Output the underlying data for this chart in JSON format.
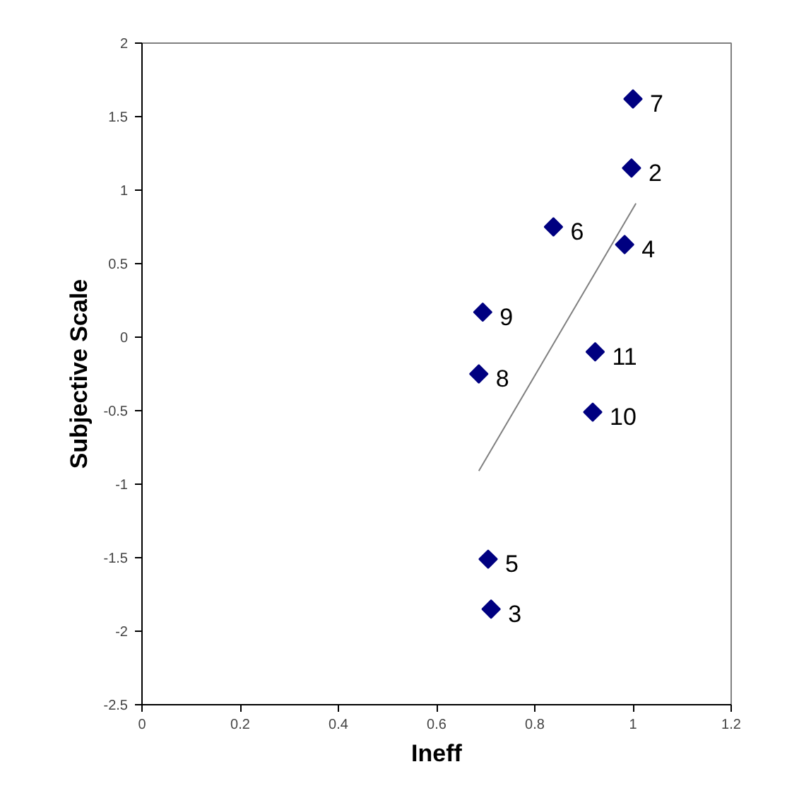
{
  "chart_data": {
    "type": "scatter",
    "xlabel": "Ineff",
    "ylabel": "Subjective Scale",
    "marker": "diamond",
    "grid": false,
    "xlim": [
      0,
      1.2
    ],
    "ylim": [
      -2.5,
      2
    ],
    "xticks": [
      0,
      0.2,
      0.4,
      0.6,
      0.8,
      1,
      1.2
    ],
    "yticks": [
      -2.5,
      -2,
      -1.5,
      -1,
      -0.5,
      0,
      0.5,
      1,
      1.5,
      2
    ],
    "series": [
      {
        "color": "#000080",
        "x": [
          1.0,
          0.997,
          0.838,
          0.983,
          0.694,
          0.923,
          0.686,
          0.918,
          0.705,
          0.711
        ],
        "values": [
          1.62,
          1.15,
          0.75,
          0.63,
          0.17,
          -0.1,
          -0.25,
          -0.51,
          -1.51,
          -1.85
        ]
      },
      {
        "type": "line",
        "marker": "none",
        "color": "#808080",
        "x": [
          0.686,
          1.006
        ],
        "values": [
          -0.91,
          0.91
        ]
      }
    ],
    "annotations": [
      {
        "text": "7",
        "x": 1.0,
        "y": 1.62
      },
      {
        "text": "2",
        "x": 0.997,
        "y": 1.15
      },
      {
        "text": "6",
        "x": 0.838,
        "y": 0.75
      },
      {
        "text": "4",
        "x": 0.983,
        "y": 0.63
      },
      {
        "text": "9",
        "x": 0.694,
        "y": 0.17
      },
      {
        "text": "11",
        "x": 0.923,
        "y": -0.1
      },
      {
        "text": "8",
        "x": 0.686,
        "y": -0.25
      },
      {
        "text": "10",
        "x": 0.918,
        "y": -0.51
      },
      {
        "text": "5",
        "x": 0.705,
        "y": -1.51
      },
      {
        "text": "3",
        "x": 0.711,
        "y": -1.85
      }
    ]
  }
}
